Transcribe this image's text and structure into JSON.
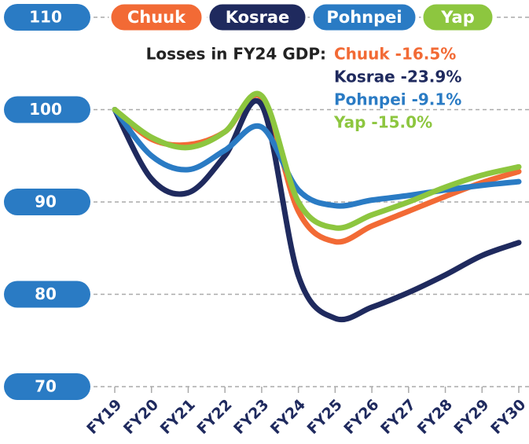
{
  "chart_data": {
    "type": "line",
    "categories": [
      "FY19",
      "FY20",
      "FY21",
      "FY22",
      "FY23",
      "FY24",
      "FY25",
      "FY26",
      "FY27",
      "FY28",
      "FY29",
      "FY30"
    ],
    "series": [
      {
        "name": "Chuuk",
        "color": "#f26a35",
        "values": [
          100,
          96.8,
          96.2,
          97.6,
          101.3,
          89,
          85.7,
          87.4,
          89,
          90.6,
          92.1,
          93.3
        ]
      },
      {
        "name": "Kosrae",
        "color": "#1f2a5e",
        "values": [
          100,
          92.5,
          91,
          95,
          100.5,
          82,
          77.4,
          78.6,
          80.2,
          82.1,
          84.2,
          85.6
        ]
      },
      {
        "name": "Pohnpei",
        "color": "#2a7bc4",
        "values": [
          100,
          95,
          93.5,
          95.6,
          98.1,
          91.3,
          89.6,
          90.2,
          90.7,
          91.3,
          91.8,
          92.2
        ]
      },
      {
        "name": "Yap",
        "color": "#8dc63f",
        "values": [
          100,
          97,
          95.9,
          97.6,
          101.5,
          90,
          87.2,
          88.6,
          90,
          91.6,
          92.9,
          93.8
        ]
      }
    ],
    "ylim": [
      70,
      110
    ],
    "yticks": [
      70,
      80,
      90,
      100,
      110
    ],
    "grid": true,
    "annotation_title": "Losses in FY24 GDP:",
    "annotations": [
      "Chuuk -16.5%",
      "Kosrae -23.9%",
      "Pohnpei -9.1%",
      "Yap -15.0%"
    ]
  }
}
